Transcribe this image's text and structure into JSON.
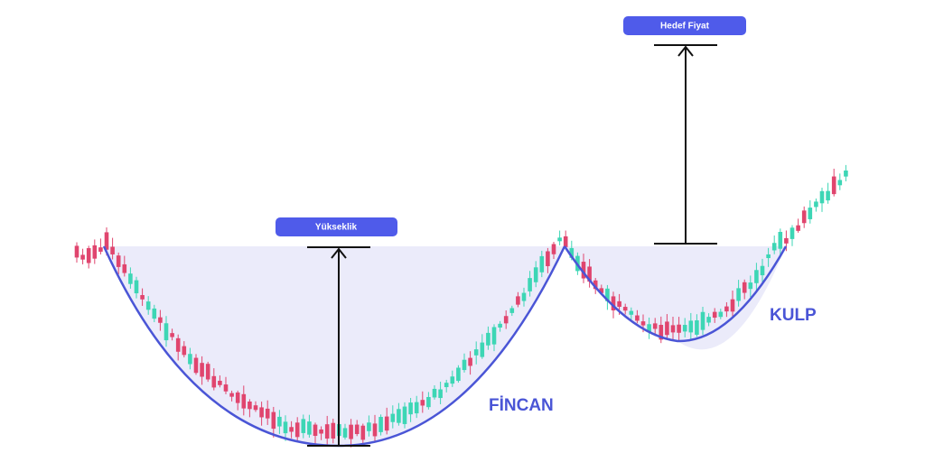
{
  "labels": {
    "height": "Yükseklik",
    "target": "Hedef Fiyat",
    "cup": "FİNCAN",
    "handle": "KULP"
  }
}
